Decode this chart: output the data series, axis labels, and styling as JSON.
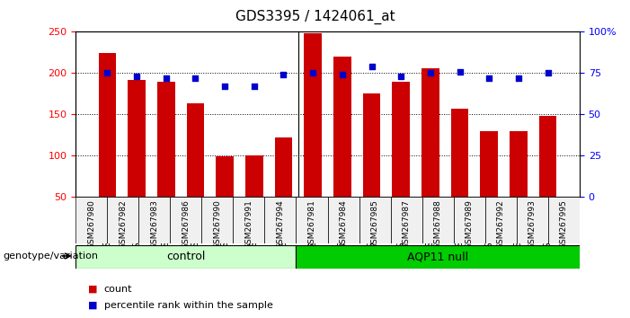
{
  "title": "GDS3395 / 1424061_at",
  "samples": [
    "GSM267980",
    "GSM267982",
    "GSM267983",
    "GSM267986",
    "GSM267990",
    "GSM267991",
    "GSM267994",
    "GSM267981",
    "GSM267984",
    "GSM267985",
    "GSM267987",
    "GSM267988",
    "GSM267989",
    "GSM267992",
    "GSM267993",
    "GSM267995"
  ],
  "counts": [
    224,
    192,
    190,
    163,
    99,
    100,
    122,
    248,
    220,
    176,
    190,
    206,
    157,
    130,
    130,
    148
  ],
  "percentile_ranks": [
    75,
    73,
    72,
    72,
    67,
    67,
    74,
    75,
    74,
    79,
    73,
    75,
    76,
    72,
    72,
    75
  ],
  "groups": [
    "control",
    "control",
    "control",
    "control",
    "control",
    "control",
    "control",
    "AQP11 null",
    "AQP11 null",
    "AQP11 null",
    "AQP11 null",
    "AQP11 null",
    "AQP11 null",
    "AQP11 null",
    "AQP11 null",
    "AQP11 null"
  ],
  "bar_color": "#CC0000",
  "dot_color": "#0000CC",
  "ylim_left": [
    50,
    250
  ],
  "ylim_right": [
    0,
    100
  ],
  "yticks_left": [
    50,
    100,
    150,
    200,
    250
  ],
  "yticks_right": [
    0,
    25,
    50,
    75,
    100
  ],
  "ytick_labels_right": [
    "0",
    "25",
    "50",
    "75",
    "100%"
  ],
  "control_color": "#ccffcc",
  "aqp11_color": "#00cc00",
  "group_label_x": "genotype/variation",
  "legend_count": "count",
  "legend_pct": "percentile rank within the sample",
  "background_color": "#f0f0f0"
}
